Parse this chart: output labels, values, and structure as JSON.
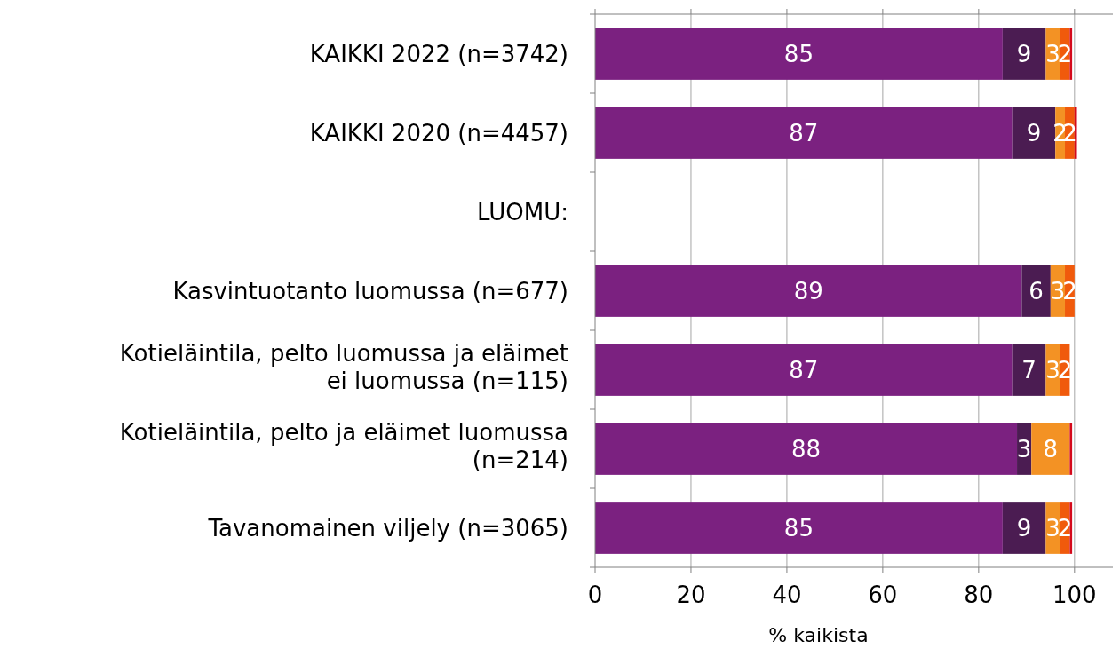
{
  "chart_data": {
    "type": "bar",
    "orientation": "horizontal",
    "stacked": true,
    "xlabel": "% kaikista",
    "categories": [
      "KAIKKI 2022 (n=3742)",
      "KAIKKI 2020 (n=4457)",
      null,
      "Kasvintuotanto luomussa (n=677)",
      "Kotieläintila, pelto luomussa ja eläimet ei luomussa (n=115)",
      "Kotieläintila, pelto ja eläimet luomussa (n=214)",
      "Tavanomainen viljely (n=3065)"
    ],
    "series": [
      {
        "color": "#7b2180",
        "values": [
          85,
          87,
          null,
          89,
          87,
          88,
          85
        ],
        "value_labels": [
          "85",
          "87",
          null,
          "89",
          "87",
          "88",
          "85"
        ]
      },
      {
        "color": "#4b1c52",
        "values": [
          9,
          9,
          null,
          6,
          7,
          3,
          9
        ],
        "value_labels": [
          "9",
          "9",
          null,
          "6",
          "7",
          "3",
          "9"
        ]
      },
      {
        "color": "#f39224",
        "values": [
          3,
          2,
          null,
          3,
          3,
          8,
          3
        ],
        "value_labels": [
          "3",
          "2",
          null,
          "3",
          "3",
          "8",
          "3"
        ]
      },
      {
        "color": "#f05a0c",
        "values": [
          2,
          2,
          null,
          2,
          2,
          0,
          2
        ],
        "value_labels": [
          "2",
          "2",
          null,
          "2",
          "2",
          null,
          "2"
        ]
      },
      {
        "color": "#d4091b",
        "values": [
          0.5,
          0.5,
          null,
          0,
          0,
          0.5,
          0.5
        ],
        "value_labels": [
          null,
          null,
          null,
          null,
          null,
          null,
          null
        ]
      }
    ],
    "annotations": [
      "LUOMU:"
    ],
    "xlim": [
      0,
      108
    ],
    "xticks": [
      0,
      20,
      40,
      60,
      80,
      100
    ],
    "grid": "x"
  }
}
